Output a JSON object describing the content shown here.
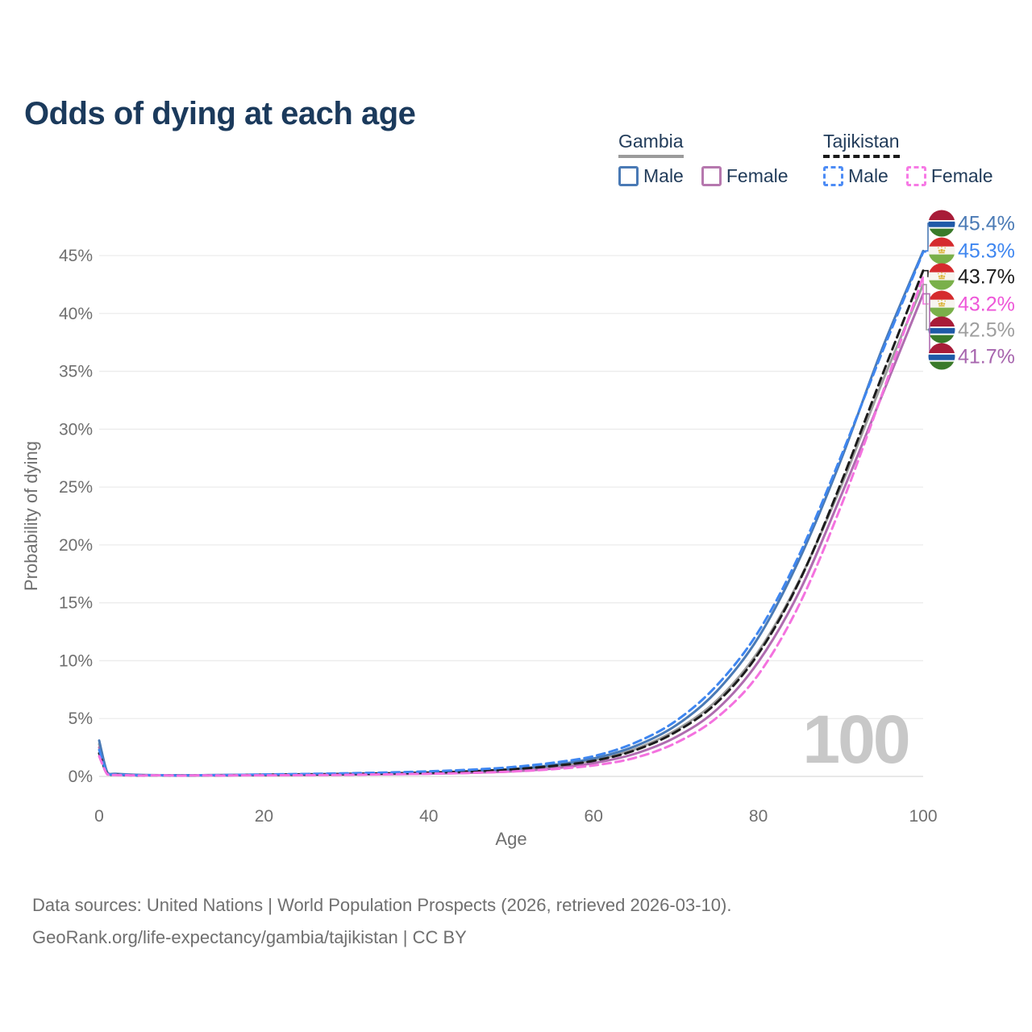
{
  "page": {
    "title": "Odds of dying at each age"
  },
  "legend": {
    "groups": [
      {
        "title": "Gambia",
        "line_style": "solid",
        "underline_color": "#9b9b9b",
        "items": [
          {
            "label": "Male",
            "color": "#4a7ab5"
          },
          {
            "label": "Female",
            "color": "#b678ae"
          }
        ]
      },
      {
        "title": "Tajikistan",
        "line_style": "dashed",
        "underline_color": "#1a1a1a",
        "items": [
          {
            "label": "Male",
            "color": "#4d8cf5"
          },
          {
            "label": "Female",
            "color": "#f77ae5"
          }
        ]
      }
    ]
  },
  "chart_data": {
    "type": "line",
    "title": "Odds of dying at each age",
    "xlabel": "Age",
    "ylabel": "Probability of dying",
    "xlim": [
      0,
      100
    ],
    "ylim": [
      0,
      45
    ],
    "x_ticks": [
      0,
      20,
      40,
      60,
      80,
      100
    ],
    "x_tick_labels": [
      "0",
      "20",
      "40",
      "60",
      "80",
      "100"
    ],
    "y_ticks": [
      0,
      5,
      10,
      15,
      20,
      25,
      30,
      35,
      40,
      45
    ],
    "y_tick_labels": [
      "0%",
      "5%",
      "10%",
      "15%",
      "20%",
      "25%",
      "30%",
      "35%",
      "40%",
      "45%"
    ],
    "grid": "horizontal",
    "legend_position": "top-right",
    "watermark": "100",
    "ages": [
      0,
      1,
      2,
      5,
      10,
      15,
      20,
      25,
      30,
      35,
      40,
      45,
      50,
      55,
      60,
      65,
      70,
      75,
      80,
      85,
      90,
      95,
      100
    ],
    "series": [
      {
        "name": "Gambia Male",
        "country": "Gambia",
        "sex": "Male",
        "flag": "gambia",
        "color": "#4a7ab5",
        "label_color": "#4a7ab5",
        "dashed": false,
        "z": 3,
        "end_label": "45.4%",
        "values": [
          3.1,
          0.32,
          0.22,
          0.13,
          0.1,
          0.12,
          0.16,
          0.19,
          0.22,
          0.27,
          0.33,
          0.44,
          0.62,
          0.98,
          1.55,
          2.6,
          4.4,
          7.4,
          12.0,
          18.8,
          27.3,
          36.9,
          45.4
        ]
      },
      {
        "name": "Tajikistan Male",
        "country": "Tajikistan",
        "sex": "Male",
        "flag": "tajikistan",
        "color": "#3e86f0",
        "label_color": "#3e86f0",
        "dashed": true,
        "z": 5,
        "end_label": "45.3%",
        "values": [
          2.3,
          0.24,
          0.16,
          0.1,
          0.08,
          0.11,
          0.17,
          0.21,
          0.27,
          0.34,
          0.44,
          0.58,
          0.8,
          1.18,
          1.75,
          2.9,
          4.8,
          7.9,
          12.5,
          19.2,
          27.6,
          36.6,
          45.3
        ]
      },
      {
        "name": "Tajikistan Both sexes",
        "country": "Tajikistan",
        "sex": "Both",
        "flag": "tajikistan",
        "color": "#1c1c1c",
        "label_color": "#1c1c1c",
        "dashed": true,
        "z": 4,
        "end_label": "43.7%",
        "values": [
          2.0,
          0.2,
          0.14,
          0.08,
          0.07,
          0.09,
          0.13,
          0.16,
          0.2,
          0.26,
          0.33,
          0.44,
          0.61,
          0.9,
          1.35,
          2.25,
          3.85,
          6.4,
          10.6,
          16.9,
          25.3,
          34.6,
          43.7
        ]
      },
      {
        "name": "Tajikistan Female",
        "country": "Tajikistan",
        "sex": "Female",
        "flag": "tajikistan",
        "color": "#f472df",
        "label_color": "#ee57d8",
        "dashed": true,
        "z": 6,
        "end_label": "43.2%",
        "values": [
          1.75,
          0.17,
          0.12,
          0.07,
          0.06,
          0.07,
          0.09,
          0.11,
          0.14,
          0.18,
          0.23,
          0.3,
          0.42,
          0.62,
          0.95,
          1.6,
          2.9,
          5.1,
          8.8,
          14.9,
          23.3,
          33.0,
          43.2
        ]
      },
      {
        "name": "Gambia Both sexes",
        "country": "Gambia",
        "sex": "Both",
        "flag": "gambia",
        "color": "#9e9e9e",
        "label_color": "#9e9e9e",
        "dashed": false,
        "z": 1,
        "end_label": "42.5%",
        "values": [
          2.8,
          0.29,
          0.2,
          0.11,
          0.09,
          0.11,
          0.14,
          0.16,
          0.19,
          0.23,
          0.29,
          0.38,
          0.53,
          0.85,
          1.4,
          2.35,
          4.0,
          6.6,
          10.8,
          17.0,
          25.0,
          34.0,
          42.5
        ]
      },
      {
        "name": "Gambia Female",
        "country": "Gambia",
        "sex": "Female",
        "flag": "gambia",
        "color": "#b06cb0",
        "label_color": "#a765ae",
        "dashed": false,
        "z": 2,
        "end_label": "41.7%",
        "values": [
          2.5,
          0.26,
          0.18,
          0.1,
          0.08,
          0.09,
          0.11,
          0.13,
          0.16,
          0.19,
          0.24,
          0.31,
          0.43,
          0.68,
          1.15,
          1.95,
          3.4,
          5.8,
          9.9,
          16.0,
          24.2,
          32.9,
          41.7
        ]
      }
    ],
    "flag_colors": {
      "gambia": {
        "red": "#a81c38",
        "white": "#ffffff",
        "blue": "#1f5aa8",
        "green": "#3a7a2a"
      },
      "tajikistan": {
        "red": "#d52b2e",
        "white": "#f7f5f0",
        "green": "#7ab04a",
        "gold": "#dcb63f"
      }
    }
  },
  "footer": {
    "line1": "Data sources: United Nations | World Population Prospects (2026, retrieved 2026-03-10).",
    "line2": "GeoRank.org/life-expectancy/gambia/tajikistan | CC BY"
  }
}
